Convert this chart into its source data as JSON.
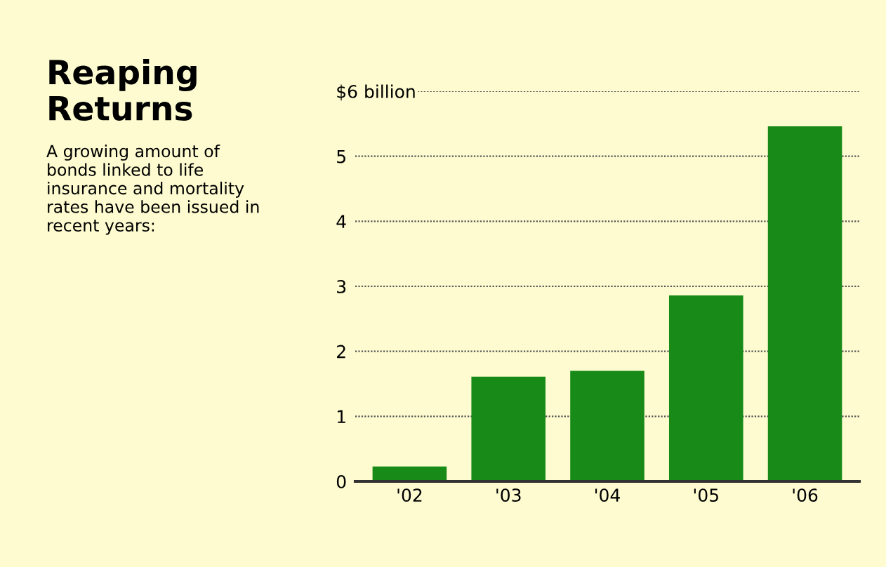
{
  "chart_data": {
    "type": "bar",
    "title": "Reaping\nReturns",
    "subtitle": "A growing amount of\nbonds linked to life\ninsurance and mortality\nrates have been issued in\nrecent years:",
    "categories": [
      "'02",
      "'03",
      "'04",
      "'05",
      "'06"
    ],
    "values": [
      0.23,
      1.61,
      1.7,
      2.86,
      5.46
    ],
    "color": "#178a17",
    "ylim": [
      0,
      6
    ],
    "yticks": [
      0,
      1,
      2,
      3,
      4,
      5,
      {
        "value": 6,
        "label": "$6 billion"
      }
    ],
    "grid": "y"
  }
}
